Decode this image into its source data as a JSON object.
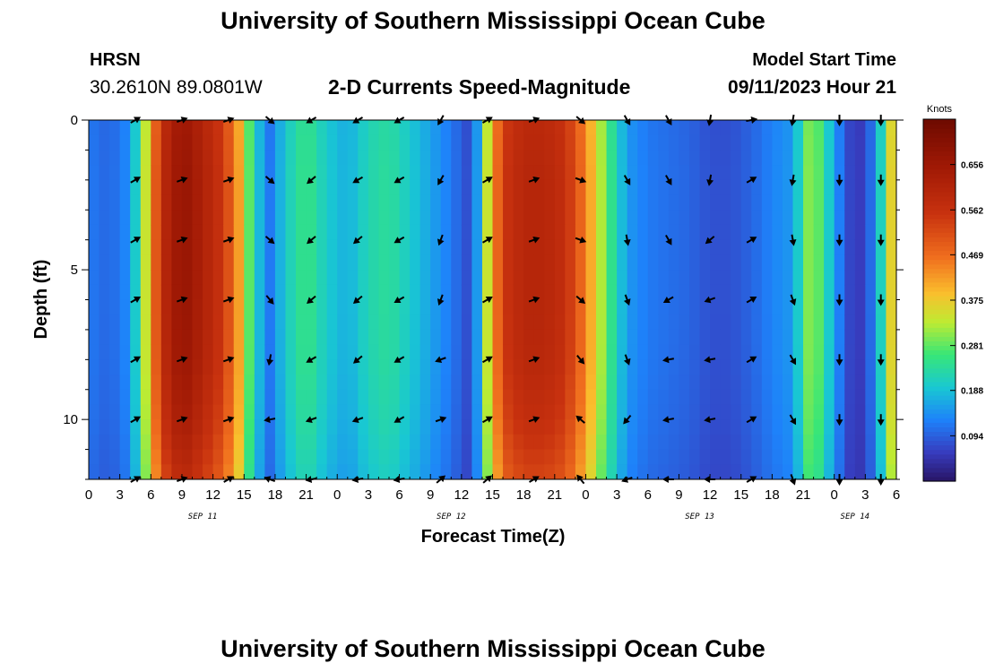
{
  "page": {
    "title_top": "University of Southern Mississippi Ocean Cube",
    "title_bottom": "University of Southern Mississippi Ocean Cube",
    "station_name": "HRSN",
    "station_coords": "30.2610N  89.0801W",
    "model_start_label": "Model Start Time",
    "model_start_value": "09/11/2023 Hour 21",
    "plot_title": "2-D Currents Speed-Magnitude"
  },
  "chart_data": {
    "type": "heatmap",
    "title": "2-D Currents Speed-Magnitude",
    "xlabel": "Forecast Time(Z)",
    "ylabel": "Depth (ft)",
    "x_tick_labels": [
      "0",
      "3",
      "6",
      "9",
      "12",
      "15",
      "18",
      "21",
      "0",
      "3",
      "6",
      "9",
      "12",
      "15",
      "18",
      "21",
      "0",
      "3",
      "6",
      "9",
      "12",
      "15",
      "18",
      "21",
      "0",
      "3",
      "6"
    ],
    "date_labels": [
      {
        "label": "SEP 11",
        "hour": 11
      },
      {
        "label": "SEP 12",
        "hour": 35
      },
      {
        "label": "SEP 13",
        "hour": 59
      },
      {
        "label": "SEP 14",
        "hour": 74
      }
    ],
    "xlim_hours": [
      0,
      78
    ],
    "y_ticks": [
      0,
      5,
      10
    ],
    "y_tick_labels": [
      "0",
      "5",
      "10"
    ],
    "ylim_ft": [
      0,
      12
    ],
    "depths_ft": [
      0,
      2,
      4,
      6,
      8,
      10,
      12
    ],
    "time_profile_hours": [
      0,
      2,
      3.5,
      4.5,
      5.5,
      7,
      9,
      11,
      13,
      14.5,
      15.5,
      16.5,
      17.5,
      19,
      21,
      23,
      25,
      27,
      29,
      31,
      33,
      35,
      36.5,
      37.5,
      38.5,
      40,
      42,
      44,
      46,
      48,
      50,
      52,
      54,
      56,
      58,
      60,
      62,
      64,
      66,
      68,
      68.5,
      69.5,
      70.5,
      72,
      73,
      74,
      75,
      76,
      77,
      78
    ],
    "speed_profile_knots": [
      0.12,
      0.1,
      0.13,
      0.2,
      0.34,
      0.58,
      0.68,
      0.62,
      0.55,
      0.42,
      0.28,
      0.18,
      0.12,
      0.2,
      0.26,
      0.2,
      0.17,
      0.22,
      0.24,
      0.2,
      0.16,
      0.12,
      0.08,
      0.15,
      0.34,
      0.55,
      0.6,
      0.6,
      0.57,
      0.45,
      0.28,
      0.15,
      0.12,
      0.11,
      0.1,
      0.08,
      0.08,
      0.1,
      0.13,
      0.15,
      0.2,
      0.3,
      0.28,
      0.16,
      0.09,
      0.05,
      0.07,
      0.14,
      0.28,
      0.45
    ],
    "depth_factor": [
      0.98,
      1.0,
      1.0,
      1.0,
      0.99,
      0.95,
      0.88
    ],
    "colorbar": {
      "label": "Knots",
      "ticks": [
        "0.094",
        "0.188",
        "0.281",
        "0.375",
        "0.469",
        "0.562",
        "0.656"
      ],
      "tick_values": [
        0.094,
        0.188,
        0.281,
        0.375,
        0.469,
        0.562,
        0.656
      ],
      "vmin": 0.0,
      "vmax": 0.75
    },
    "arrow_hours": [
      4.5,
      9,
      13.5,
      17.5,
      21.5,
      26,
      30,
      34,
      38.5,
      43,
      47.5,
      52,
      56,
      60,
      64,
      68,
      72.5,
      76.5
    ],
    "arrow_depths_ft": [
      0,
      2,
      4,
      6,
      8,
      10,
      12
    ],
    "arrow_direction_deg": [
      [
        60,
        60,
        60,
        60,
        60,
        60,
        60
      ],
      [
        70,
        70,
        70,
        70,
        70,
        70,
        70
      ],
      [
        70,
        70,
        70,
        70,
        70,
        70,
        60
      ],
      [
        130,
        130,
        130,
        140,
        190,
        260,
        290
      ],
      [
        240,
        230,
        230,
        230,
        240,
        250,
        260
      ],
      [
        240,
        240,
        230,
        230,
        230,
        250,
        260
      ],
      [
        240,
        240,
        240,
        240,
        240,
        240,
        260
      ],
      [
        210,
        210,
        200,
        200,
        250,
        70,
        50
      ],
      [
        60,
        60,
        60,
        60,
        60,
        60,
        50
      ],
      [
        70,
        70,
        70,
        70,
        70,
        70,
        60
      ],
      [
        130,
        110,
        110,
        130,
        140,
        310,
        320
      ],
      [
        150,
        150,
        170,
        160,
        160,
        220,
        250
      ],
      [
        150,
        150,
        150,
        240,
        260,
        260,
        270
      ],
      [
        190,
        190,
        230,
        250,
        260,
        260,
        270
      ],
      [
        80,
        60,
        60,
        60,
        60,
        60,
        60
      ],
      [
        190,
        190,
        170,
        160,
        150,
        150,
        160
      ],
      [
        180,
        180,
        180,
        180,
        180,
        180,
        180
      ],
      [
        180,
        180,
        180,
        180,
        180,
        180,
        180
      ]
    ]
  }
}
